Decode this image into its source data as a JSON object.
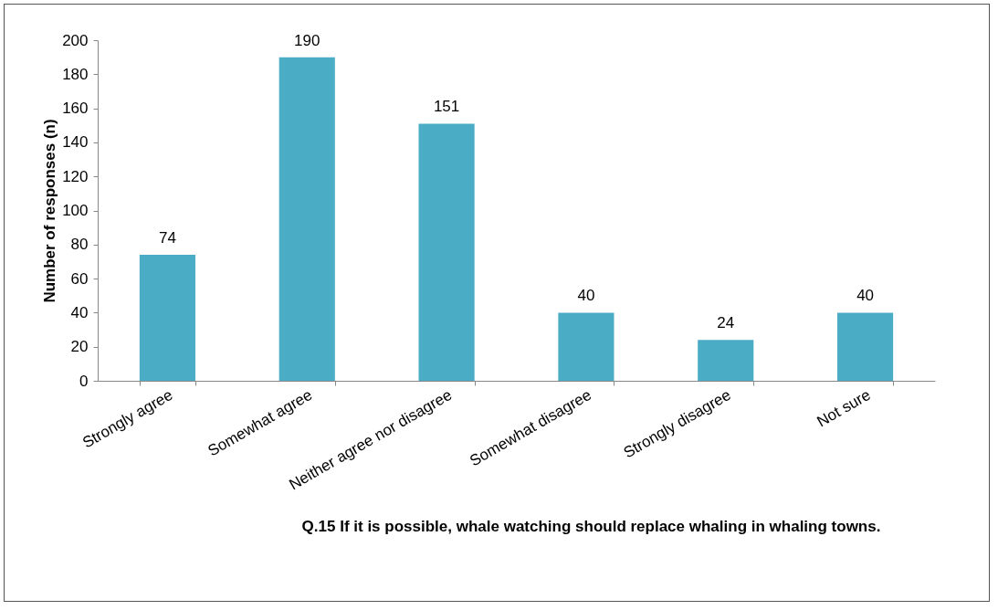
{
  "chart_data": {
    "type": "bar",
    "xlabel": "Q.15 If it is possible, whale watching should replace whaling in whaling towns.",
    "ylabel": "Number of responses (n)",
    "categories": [
      "Strongly agree",
      "Somewhat agree",
      "Neither agree nor disagree",
      "Somewhat disagree",
      "Strongly disagree",
      "Not sure"
    ],
    "values": [
      74,
      190,
      151,
      40,
      24,
      40
    ],
    "color": "#4bacc6",
    "ylim": [
      0,
      200
    ],
    "yticks": [
      0,
      20,
      40,
      60,
      80,
      100,
      120,
      140,
      160,
      180,
      200
    ],
    "grid": false,
    "data_labels": true
  }
}
